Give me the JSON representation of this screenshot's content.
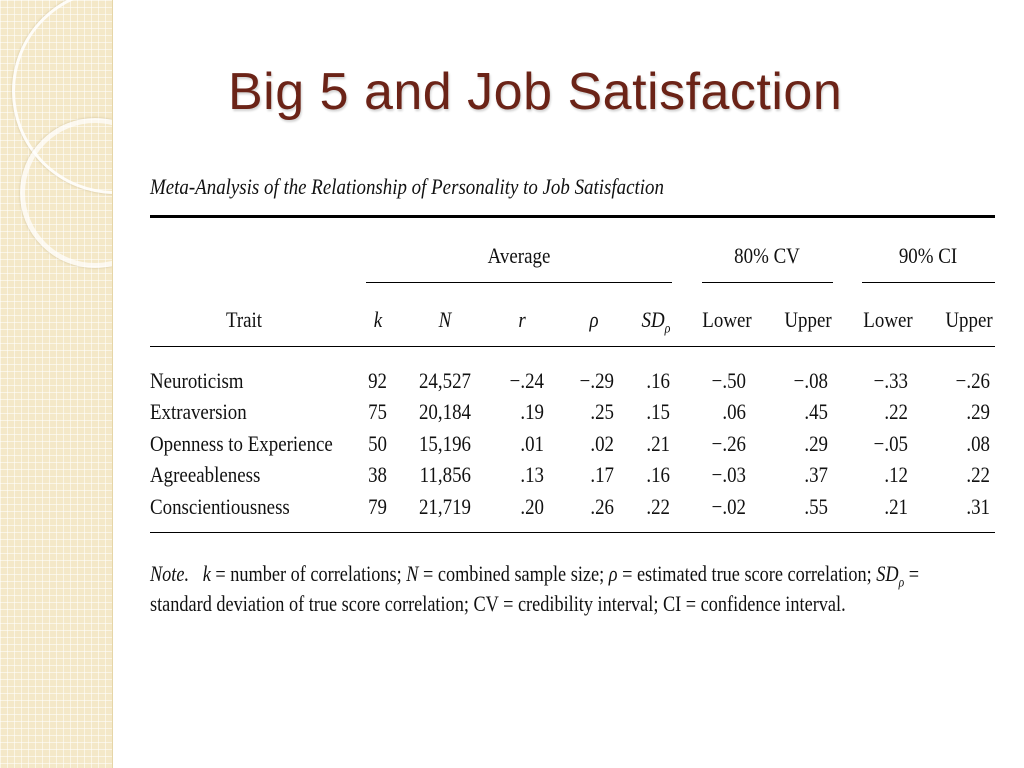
{
  "slide": {
    "title": "Big 5 and Job Satisfaction"
  },
  "table": {
    "caption": "Meta-Analysis of the Relationship of Personality to Job Satisfaction",
    "group_headers": {
      "average": "Average",
      "cv": "80% CV",
      "ci": "90% CI"
    },
    "columns": {
      "trait": "Trait",
      "k": "k",
      "n": "N",
      "r": "r",
      "rho": "ρ",
      "sd": "SD",
      "sd_sub": "ρ",
      "cv_lower": "Lower",
      "cv_upper": "Upper",
      "ci_lower": "Lower",
      "ci_upper": "Upper"
    },
    "rows": [
      {
        "trait": "Neuroticism",
        "k": "92",
        "n": "24,527",
        "r": "−.24",
        "rho": "−.29",
        "sd": ".16",
        "cv_lower": "−.50",
        "cv_upper": "−.08",
        "ci_lower": "−.33",
        "ci_upper": "−.26"
      },
      {
        "trait": "Extraversion",
        "k": "75",
        "n": "20,184",
        "r": ".19",
        "rho": ".25",
        "sd": ".15",
        "cv_lower": ".06",
        "cv_upper": ".45",
        "ci_lower": ".22",
        "ci_upper": ".29"
      },
      {
        "trait": "Openness to Experience",
        "k": "50",
        "n": "15,196",
        "r": ".01",
        "rho": ".02",
        "sd": ".21",
        "cv_lower": "−.26",
        "cv_upper": ".29",
        "ci_lower": "−.05",
        "ci_upper": ".08"
      },
      {
        "trait": "Agreeableness",
        "k": "38",
        "n": "11,856",
        "r": ".13",
        "rho": ".17",
        "sd": ".16",
        "cv_lower": "−.03",
        "cv_upper": ".37",
        "ci_lower": ".12",
        "ci_upper": ".22"
      },
      {
        "trait": "Conscientiousness",
        "k": "79",
        "n": "21,719",
        "r": ".20",
        "rho": ".26",
        "sd": ".22",
        "cv_lower": "−.02",
        "cv_upper": ".55",
        "ci_lower": ".21",
        "ci_upper": ".31"
      }
    ],
    "note": {
      "label": "Note.",
      "k_sym": "k",
      "k_text": "= number of correlations;",
      "n_sym": "N",
      "n_text": "= combined sample size;",
      "rho_sym": "ρ",
      "rho_text": "= estimated true score correlation;",
      "sd_sym": "SD",
      "sd_sub": "ρ",
      "sd_eq": "=",
      "line2": "standard deviation of true score correlation; CV = credibility interval; CI = confidence interval."
    }
  }
}
